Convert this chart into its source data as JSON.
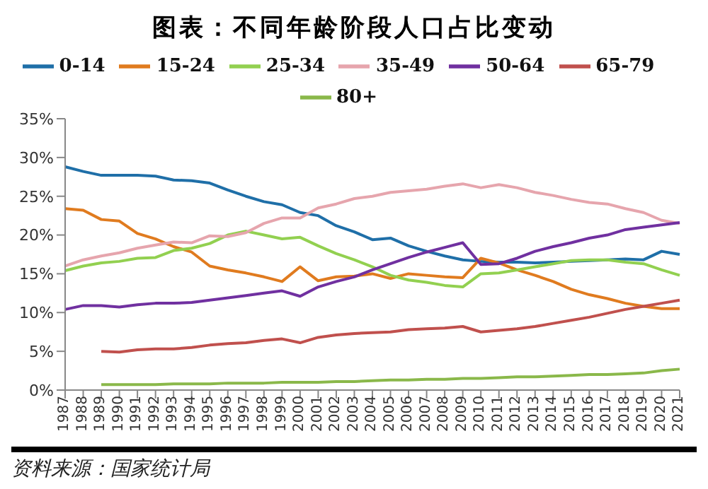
{
  "chart_data": {
    "type": "line",
    "title": "图表：不同年龄阶段人口占比变动",
    "categories": [
      "1987",
      "1988",
      "1989",
      "1990",
      "1991",
      "1992",
      "1993",
      "1994",
      "1995",
      "1996",
      "1997",
      "1998",
      "1999",
      "2000",
      "2001",
      "2002",
      "2003",
      "2004",
      "2005",
      "2006",
      "2007",
      "2008",
      "2009",
      "2010",
      "2011",
      "2012",
      "2013",
      "2014",
      "2015",
      "2016",
      "2017",
      "2018",
      "2019",
      "2020",
      "2021"
    ],
    "series": [
      {
        "name": "0-14",
        "color": "#1f6fa8",
        "values": [
          28.8,
          28.2,
          27.7,
          27.7,
          27.7,
          27.6,
          27.1,
          27.0,
          26.7,
          25.8,
          25.0,
          24.3,
          23.9,
          22.9,
          22.5,
          21.2,
          20.4,
          19.4,
          19.6,
          18.6,
          17.9,
          17.3,
          16.8,
          16.6,
          16.5,
          16.5,
          16.4,
          16.5,
          16.6,
          16.7,
          16.8,
          16.9,
          16.8,
          17.9,
          17.5
        ]
      },
      {
        "name": "15-24",
        "color": "#e07b1f",
        "values": [
          23.4,
          23.2,
          22.0,
          21.8,
          20.2,
          19.5,
          18.5,
          17.8,
          16.0,
          15.5,
          15.1,
          14.6,
          14.0,
          15.9,
          14.1,
          14.6,
          14.7,
          15.0,
          14.4,
          15.0,
          14.8,
          14.6,
          14.5,
          17.0,
          16.4,
          15.5,
          14.8,
          14.0,
          13.0,
          12.3,
          11.8,
          11.2,
          10.8,
          10.5,
          10.5
        ]
      },
      {
        "name": "25-34",
        "color": "#92d050",
        "values": [
          15.4,
          16.0,
          16.4,
          16.6,
          17.0,
          17.1,
          18.0,
          18.3,
          18.9,
          20.0,
          20.5,
          20.0,
          19.5,
          19.7,
          18.6,
          17.6,
          16.8,
          15.9,
          14.8,
          14.2,
          13.9,
          13.5,
          13.3,
          15.0,
          15.1,
          15.5,
          15.9,
          16.3,
          16.7,
          16.8,
          16.8,
          16.5,
          16.3,
          15.5,
          14.8
        ]
      },
      {
        "name": "35-49",
        "color": "#e6a5ad",
        "values": [
          16.0,
          16.8,
          17.3,
          17.7,
          18.3,
          18.7,
          19.1,
          19.0,
          19.9,
          19.8,
          20.3,
          21.5,
          22.2,
          22.2,
          23.5,
          24.0,
          24.7,
          25.0,
          25.5,
          25.7,
          25.9,
          26.3,
          26.6,
          26.1,
          26.5,
          26.1,
          25.5,
          25.1,
          24.6,
          24.2,
          24.0,
          23.4,
          22.9,
          21.9,
          21.5
        ]
      },
      {
        "name": "50-64",
        "color": "#7030a0",
        "values": [
          10.4,
          10.9,
          10.9,
          10.7,
          11.0,
          11.2,
          11.2,
          11.3,
          11.6,
          11.9,
          12.2,
          12.5,
          12.8,
          12.1,
          13.3,
          14.0,
          14.6,
          15.5,
          16.3,
          17.1,
          17.8,
          18.4,
          19.0,
          16.2,
          16.3,
          17.0,
          17.9,
          18.5,
          19.0,
          19.6,
          20.0,
          20.7,
          21.0,
          21.3,
          21.6
        ]
      },
      {
        "name": "65-79",
        "color": "#c0504d",
        "values": [
          null,
          null,
          5.0,
          4.9,
          5.2,
          5.3,
          5.3,
          5.5,
          5.8,
          6.0,
          6.1,
          6.4,
          6.6,
          6.1,
          6.8,
          7.1,
          7.3,
          7.4,
          7.5,
          7.8,
          7.9,
          8.0,
          8.2,
          7.5,
          7.7,
          7.9,
          8.2,
          8.6,
          9.0,
          9.4,
          9.9,
          10.4,
          10.8,
          11.2,
          11.6
        ]
      },
      {
        "name": "80+",
        "color": "#8ab84a",
        "values": [
          null,
          null,
          0.7,
          0.7,
          0.7,
          0.7,
          0.8,
          0.8,
          0.8,
          0.9,
          0.9,
          0.9,
          1.0,
          1.0,
          1.0,
          1.1,
          1.1,
          1.2,
          1.3,
          1.3,
          1.4,
          1.4,
          1.5,
          1.5,
          1.6,
          1.7,
          1.7,
          1.8,
          1.9,
          2.0,
          2.0,
          2.1,
          2.2,
          2.5,
          2.7
        ]
      }
    ],
    "ylim": [
      0,
      35
    ],
    "yticks": [
      {
        "value": 0,
        "label": "0%"
      },
      {
        "value": 5,
        "label": "5%"
      },
      {
        "value": 10,
        "label": "10%"
      },
      {
        "value": 15,
        "label": "15%"
      },
      {
        "value": 20,
        "label": "20%"
      },
      {
        "value": 25,
        "label": "25%"
      },
      {
        "value": 30,
        "label": "30%"
      },
      {
        "value": 35,
        "label": "35%"
      }
    ],
    "legend": "top",
    "grid": false,
    "marker": "none",
    "line_style": "solid",
    "annotations": [
      "资料来源：国家统计局"
    ]
  }
}
